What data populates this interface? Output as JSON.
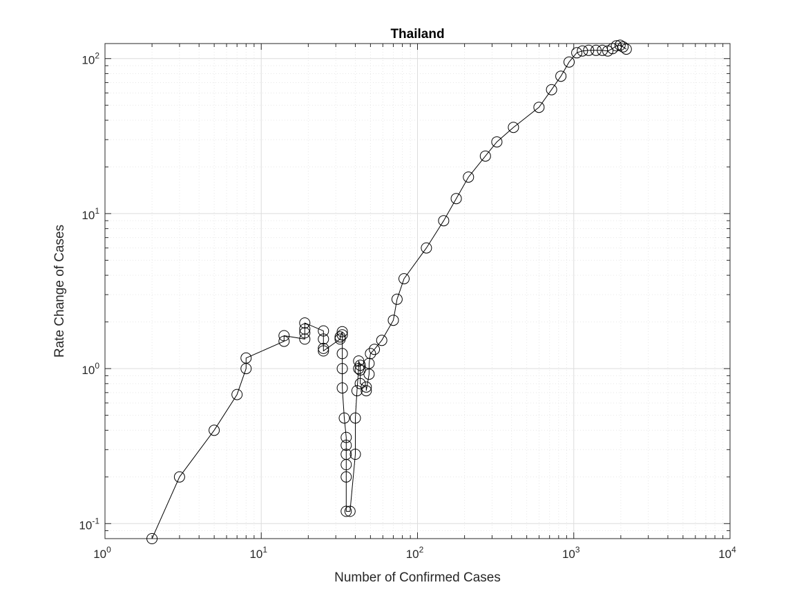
{
  "chart_data": {
    "type": "line",
    "title": "Thailand",
    "xlabel": "Number of Confirmed Cases",
    "ylabel": "Rate Change of Cases",
    "xscale": "log",
    "yscale": "log",
    "xlim": [
      1,
      10000
    ],
    "ylim": [
      0.08,
      125
    ],
    "grid": true,
    "minor_grid": true,
    "legend": false,
    "marker": "circle",
    "marker_fill": "none",
    "line_color": "#000000",
    "x_ticks": [
      {
        "base": "10",
        "exp": "0",
        "value": 1
      },
      {
        "base": "10",
        "exp": "1",
        "value": 10
      },
      {
        "base": "10",
        "exp": "2",
        "value": 100
      },
      {
        "base": "10",
        "exp": "3",
        "value": 1000
      },
      {
        "base": "10",
        "exp": "4",
        "value": 10000
      }
    ],
    "y_ticks": [
      {
        "base": "10",
        "exp": "-1",
        "value": 0.1
      },
      {
        "base": "10",
        "exp": "0",
        "value": 1
      },
      {
        "base": "10",
        "exp": "1",
        "value": 10
      },
      {
        "base": "10",
        "exp": "2",
        "value": 100
      }
    ],
    "series": [
      {
        "points": [
          [
            2,
            0.08
          ],
          [
            3,
            0.2
          ],
          [
            5,
            0.4
          ],
          [
            7,
            0.68
          ],
          [
            8,
            1.0
          ],
          [
            8,
            1.17
          ],
          [
            14,
            1.5
          ],
          [
            14,
            1.63
          ],
          [
            19,
            1.55
          ],
          [
            19,
            1.7
          ],
          [
            19,
            1.8
          ],
          [
            19,
            1.97
          ],
          [
            25,
            1.75
          ],
          [
            25,
            1.55
          ],
          [
            25,
            1.35
          ],
          [
            25,
            1.3
          ],
          [
            32,
            1.55
          ],
          [
            32,
            1.6
          ],
          [
            33,
            1.73
          ],
          [
            33,
            1.65
          ],
          [
            33,
            1.25
          ],
          [
            33,
            1.0
          ],
          [
            33,
            0.75
          ],
          [
            34,
            0.48
          ],
          [
            35,
            0.36
          ],
          [
            35,
            0.32
          ],
          [
            35,
            0.28
          ],
          [
            35,
            0.24
          ],
          [
            35,
            0.2
          ],
          [
            35,
            0.12
          ],
          [
            37,
            0.12
          ],
          [
            40,
            0.28
          ],
          [
            40,
            0.48
          ],
          [
            41,
            0.72
          ],
          [
            42,
            1.0
          ],
          [
            42,
            1.12
          ],
          [
            43,
            1.05
          ],
          [
            43,
            0.98
          ],
          [
            43,
            0.8
          ],
          [
            47,
            0.76
          ],
          [
            47,
            0.72
          ],
          [
            49,
            0.92
          ],
          [
            49,
            1.08
          ],
          [
            50,
            1.25
          ],
          [
            53,
            1.33
          ],
          [
            59,
            1.52
          ],
          [
            70,
            2.05
          ],
          [
            74,
            2.8
          ],
          [
            82,
            3.8
          ],
          [
            114,
            6.0
          ],
          [
            147,
            9.0
          ],
          [
            177,
            12.5
          ],
          [
            212,
            17.2
          ],
          [
            272,
            23.5
          ],
          [
            322,
            29.0
          ],
          [
            411,
            36.0
          ],
          [
            599,
            48.5
          ],
          [
            721,
            63.0
          ],
          [
            827,
            77.0
          ],
          [
            934,
            95.0
          ],
          [
            1045,
            109.0
          ],
          [
            1136,
            112.0
          ],
          [
            1245,
            113.0
          ],
          [
            1388,
            113.0
          ],
          [
            1524,
            113.0
          ],
          [
            1651,
            112.0
          ],
          [
            1771,
            116.0
          ],
          [
            1875,
            121.0
          ],
          [
            1978,
            122.0
          ],
          [
            2067,
            119.0
          ],
          [
            2169,
            115.0
          ]
        ]
      }
    ]
  }
}
